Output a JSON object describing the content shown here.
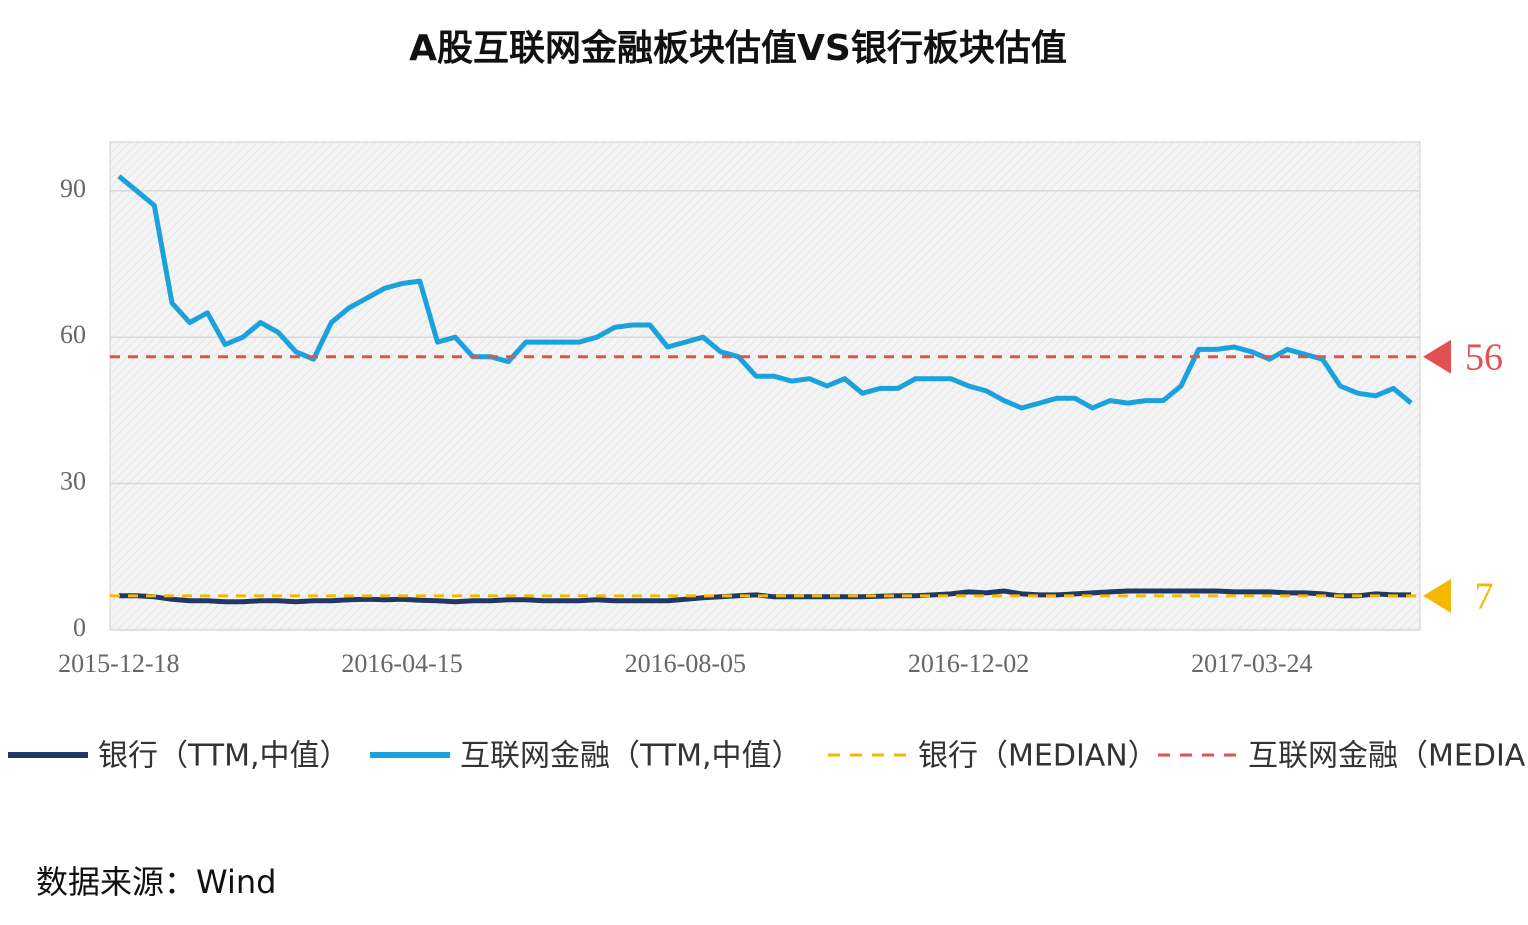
{
  "chart_data": {
    "type": "line",
    "title": "A股互联网金融板块估值VS银行板块估值",
    "source": "数据来源：Wind",
    "categories": [
      "2015-12-18",
      null,
      null,
      null,
      null,
      null,
      null,
      null,
      null,
      null,
      null,
      null,
      null,
      null,
      null,
      null,
      "2016-04-15",
      null,
      null,
      null,
      null,
      null,
      null,
      null,
      null,
      null,
      null,
      null,
      null,
      null,
      null,
      null,
      "2016-08-05",
      null,
      null,
      null,
      null,
      null,
      null,
      null,
      null,
      null,
      null,
      null,
      null,
      null,
      null,
      null,
      "2016-12-02",
      null,
      null,
      null,
      null,
      null,
      null,
      null,
      null,
      null,
      null,
      null,
      null,
      null,
      null,
      null,
      "2017-03-24",
      null,
      null,
      null,
      null,
      null,
      null,
      null,
      null,
      null
    ],
    "series": [
      {
        "name": "银行（TTM,中值）",
        "color": "#1f3864",
        "values": [
          7,
          7,
          6.8,
          6.3,
          6,
          6,
          5.8,
          5.8,
          6,
          6,
          5.8,
          6,
          6,
          6.2,
          6.3,
          6.2,
          6.3,
          6.1,
          6,
          5.8,
          6,
          6,
          6.2,
          6.2,
          6,
          6,
          6,
          6.2,
          6,
          6,
          6,
          6,
          6.3,
          6.6,
          6.8,
          7,
          7.2,
          6.8,
          6.8,
          6.8,
          6.8,
          6.8,
          6.8,
          6.9,
          7,
          7,
          7.2,
          7.4,
          7.8,
          7.6,
          8,
          7.4,
          7.2,
          7.2,
          7.4,
          7.6,
          7.8,
          8,
          8,
          8,
          8,
          8,
          8,
          7.8,
          7.8,
          7.8,
          7.6,
          7.6,
          7.4,
          7,
          7,
          7.4,
          7.2,
          7.2
        ]
      },
      {
        "name": "互联网金融（TTM,中值）",
        "color": "#1ba1dc",
        "values": [
          93,
          90,
          87,
          67,
          63,
          65,
          58.5,
          60,
          63,
          61,
          57,
          55.5,
          63,
          66,
          68,
          70,
          71,
          71.5,
          59,
          60,
          56,
          56,
          55,
          59,
          59,
          59,
          59,
          60,
          62,
          62.5,
          62.5,
          58,
          59,
          60,
          57,
          56,
          52,
          52,
          51,
          51.5,
          50,
          51.5,
          48.5,
          49.5,
          49.5,
          51.5,
          51.5,
          51.5,
          50,
          49,
          47,
          45.5,
          46.5,
          47.5,
          47.5,
          45.5,
          47,
          46.5,
          47,
          47,
          50,
          57.5,
          57.5,
          58,
          57,
          55.5,
          57.5,
          56.5,
          55.5,
          50,
          48.5,
          48,
          49.5,
          46.5
        ]
      },
      {
        "name": "银行（MEDIAN）",
        "color": "#f5b800",
        "median": 7
      },
      {
        "name": "互联网金融（MEDIAN）",
        "color": "#e05252",
        "median": 56
      }
    ],
    "ylim": [
      0,
      100
    ],
    "yticks": [
      0,
      30,
      60,
      90
    ],
    "grid": true
  }
}
